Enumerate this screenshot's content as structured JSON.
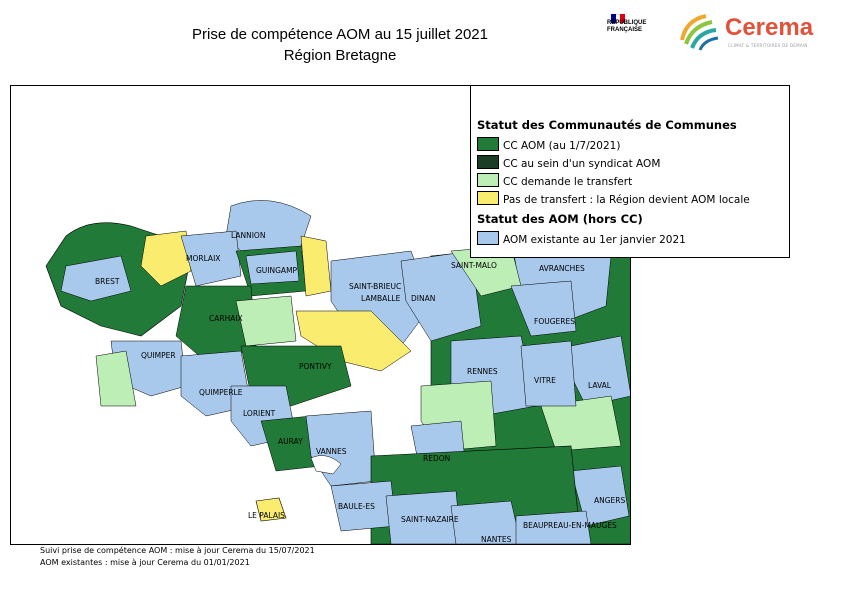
{
  "header": {
    "title_line1": "Prise de compétence AOM au 15 juillet 2021",
    "title_line2": "Région Bretagne"
  },
  "logos": {
    "republic": {
      "line1": "RÉPUBLIQUE",
      "line2": "FRANÇAISE",
      "flag_colors": [
        "#000091",
        "#ffffff",
        "#e1000f"
      ]
    },
    "cerema": {
      "name": "Cerema",
      "tagline": "CLIMAT & TERRITOIRES DE DEMAIN",
      "color": "#e2513a"
    }
  },
  "legend": {
    "heading_cc": "Statut des Communautés de Communes",
    "heading_aom": "Statut des AOM (hors CC)",
    "items": [
      {
        "label": "CC AOM (au 1/7/2021)",
        "color": "#217a37"
      },
      {
        "label": "CC au sein d'un syndicat AOM",
        "color": "#1a3d25"
      },
      {
        "label": "CC demande le transfert",
        "color": "#bdeeb6"
      },
      {
        "label": "Pas de transfert : la Région devient AOM locale",
        "color": "#f9ec6f"
      },
      {
        "label": "AOM existante au 1er janvier 2021",
        "color": "#a8c9ec"
      }
    ]
  },
  "map": {
    "place_labels": [
      "LANNION",
      "MORLAIX",
      "BREST",
      "GUINGAMP",
      "SAINT-BRIEUC",
      "LAMBALLE",
      "DINAN",
      "SAINT-MALO",
      "AVRANCHES",
      "CARHAIX",
      "QUIMPER",
      "PONTIVY",
      "FOUGERES",
      "RENNES",
      "VITRE",
      "LAVAL",
      "QUIMPERLE",
      "LORIENT",
      "AURAY",
      "VANNES",
      "REDON",
      "ANGERS",
      "BAULE-ES",
      "SAINT-NAZAIRE",
      "NANTES",
      "BEAUPREAU-EN-MAUGES",
      "LE PALAIS"
    ]
  },
  "footer": {
    "line1": "Suivi prise de compétence AOM : mise à jour Cerema du 15/07/2021",
    "line2": "AOM existantes : mise à jour Cerema du 01/01/2021"
  }
}
